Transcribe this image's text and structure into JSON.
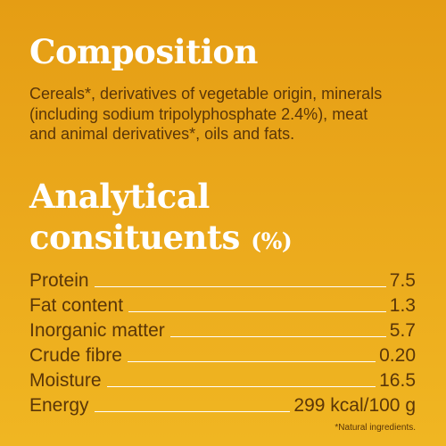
{
  "composition": {
    "title": "Composition",
    "lines": [
      "Cereals*, derivatives of vegetable origin, minerals",
      "(including sodium tripolyphosphate 2.4%), meat",
      "and animal derivatives*, oils and fats."
    ]
  },
  "analytical": {
    "title_line1": "Analytical",
    "title_line2": "consituents",
    "title_unit": "(%)",
    "rows": [
      [
        "Protein",
        "7.5"
      ],
      [
        "Fat content",
        "1.3"
      ],
      [
        "Inorganic matter",
        "5.7"
      ],
      [
        "Crude fibre",
        "0.20"
      ],
      [
        "Moisture",
        "16.5"
      ],
      [
        "Energy",
        "299 kcal/100 g"
      ]
    ]
  },
  "footnote": "*Natural ingredients."
}
